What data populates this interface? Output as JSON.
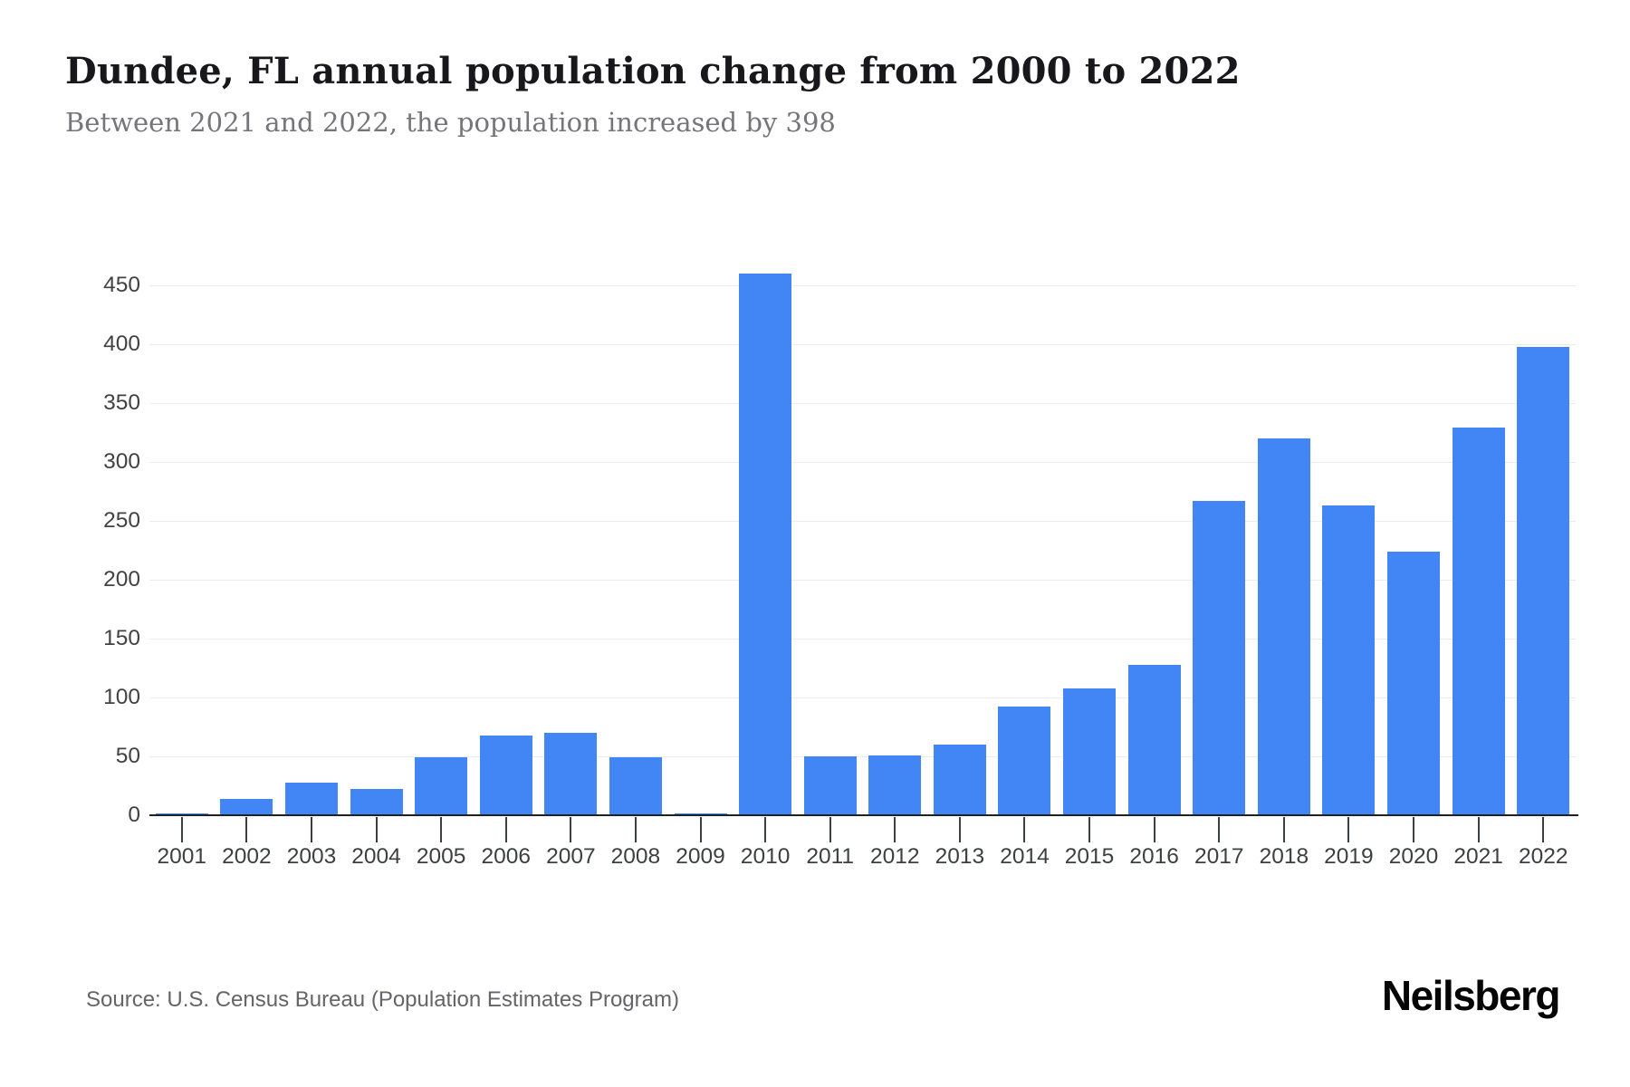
{
  "header": {
    "title": "Dundee, FL annual population change from 2000 to 2022",
    "subtitle": "Between 2021 and 2022, the population increased by 398"
  },
  "chart_data": {
    "type": "bar",
    "title": "Dundee, FL annual population change from 2000 to 2022",
    "subtitle": "Between 2021 and 2022, the population increased by 398",
    "categories": [
      "2001",
      "2002",
      "2003",
      "2004",
      "2005",
      "2006",
      "2007",
      "2008",
      "2009",
      "2010",
      "2011",
      "2012",
      "2013",
      "2014",
      "2015",
      "2016",
      "2017",
      "2018",
      "2019",
      "2020",
      "2021",
      "2022"
    ],
    "values": [
      1,
      14,
      28,
      22,
      49,
      68,
      70,
      49,
      1,
      460,
      50,
      51,
      60,
      92,
      108,
      128,
      267,
      320,
      263,
      224,
      329,
      398
    ],
    "xlabel": "",
    "ylabel": "",
    "ylim": [
      0,
      500
    ],
    "yticks": [
      0,
      50,
      100,
      150,
      200,
      250,
      300,
      350,
      400,
      450
    ],
    "grid": "horizontal",
    "legend": "none",
    "bar_color": "#4285F4",
    "axis_color": "#202124",
    "gridline_color": "#ececec",
    "tick_label_color": "#424242"
  },
  "footer": {
    "source": "Source: U.S. Census Bureau (Population Estimates Program)",
    "brand": "Neilsberg"
  }
}
